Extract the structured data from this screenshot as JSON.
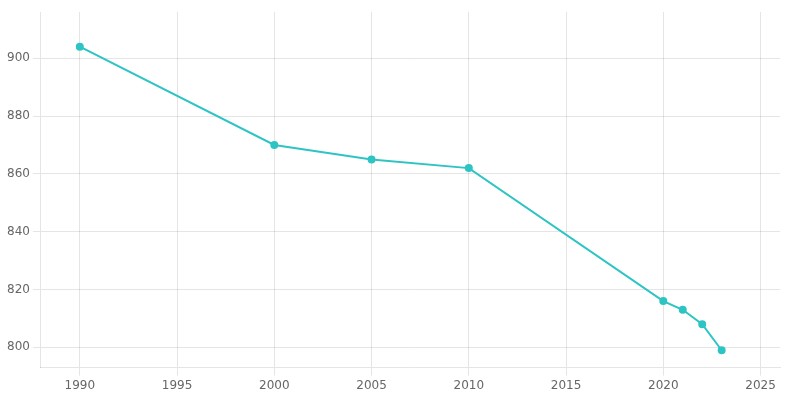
{
  "chart_data": {
    "type": "line",
    "x": [
      1990,
      2000,
      2005,
      2010,
      2020,
      2021,
      2022,
      2023
    ],
    "values": [
      904,
      870,
      865,
      862,
      816,
      813,
      808,
      799
    ],
    "color": "#2ec4c4",
    "marker": "o",
    "xlim": [
      1988,
      2026
    ],
    "ylim": [
      793,
      916
    ],
    "xticks": [
      1990,
      1995,
      2000,
      2005,
      2010,
      2015,
      2020,
      2025
    ],
    "yticks": [
      800,
      820,
      840,
      860,
      880,
      900
    ],
    "grid": true
  }
}
